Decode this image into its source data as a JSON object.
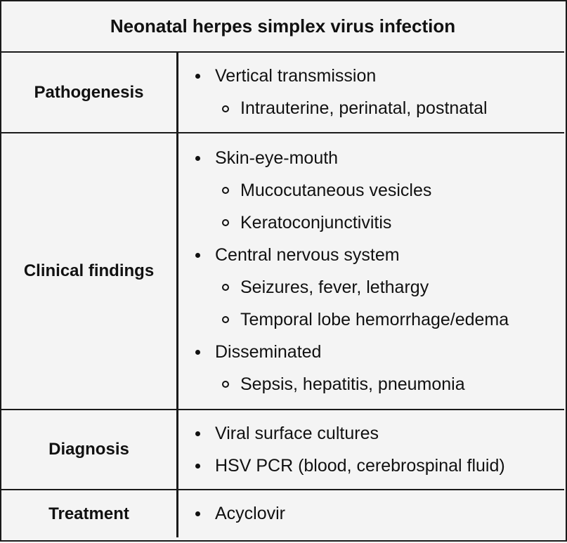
{
  "title": "Neonatal herpes simplex virus infection",
  "rows": [
    {
      "heading": "Pathogenesis",
      "items": [
        {
          "text": "Vertical transmission",
          "sub": [
            "Intrauterine, perinatal, postnatal"
          ]
        }
      ]
    },
    {
      "heading": "Clinical findings",
      "items": [
        {
          "text": "Skin-eye-mouth",
          "sub": [
            "Mucocutaneous vesicles",
            "Keratoconjunctivitis"
          ]
        },
        {
          "text": "Central nervous system",
          "sub": [
            "Seizures, fever, lethargy",
            "Temporal lobe hemorrhage/edema"
          ]
        },
        {
          "text": "Disseminated",
          "sub": [
            "Sepsis, hepatitis, pneumonia"
          ]
        }
      ]
    },
    {
      "heading": "Diagnosis",
      "items": [
        {
          "text": "Viral surface cultures",
          "sub": []
        },
        {
          "text": "HSV PCR (blood, cerebrospinal fluid)",
          "sub": []
        }
      ]
    },
    {
      "heading": "Treatment",
      "items": [
        {
          "text": "Acyclovir",
          "sub": []
        }
      ]
    }
  ]
}
